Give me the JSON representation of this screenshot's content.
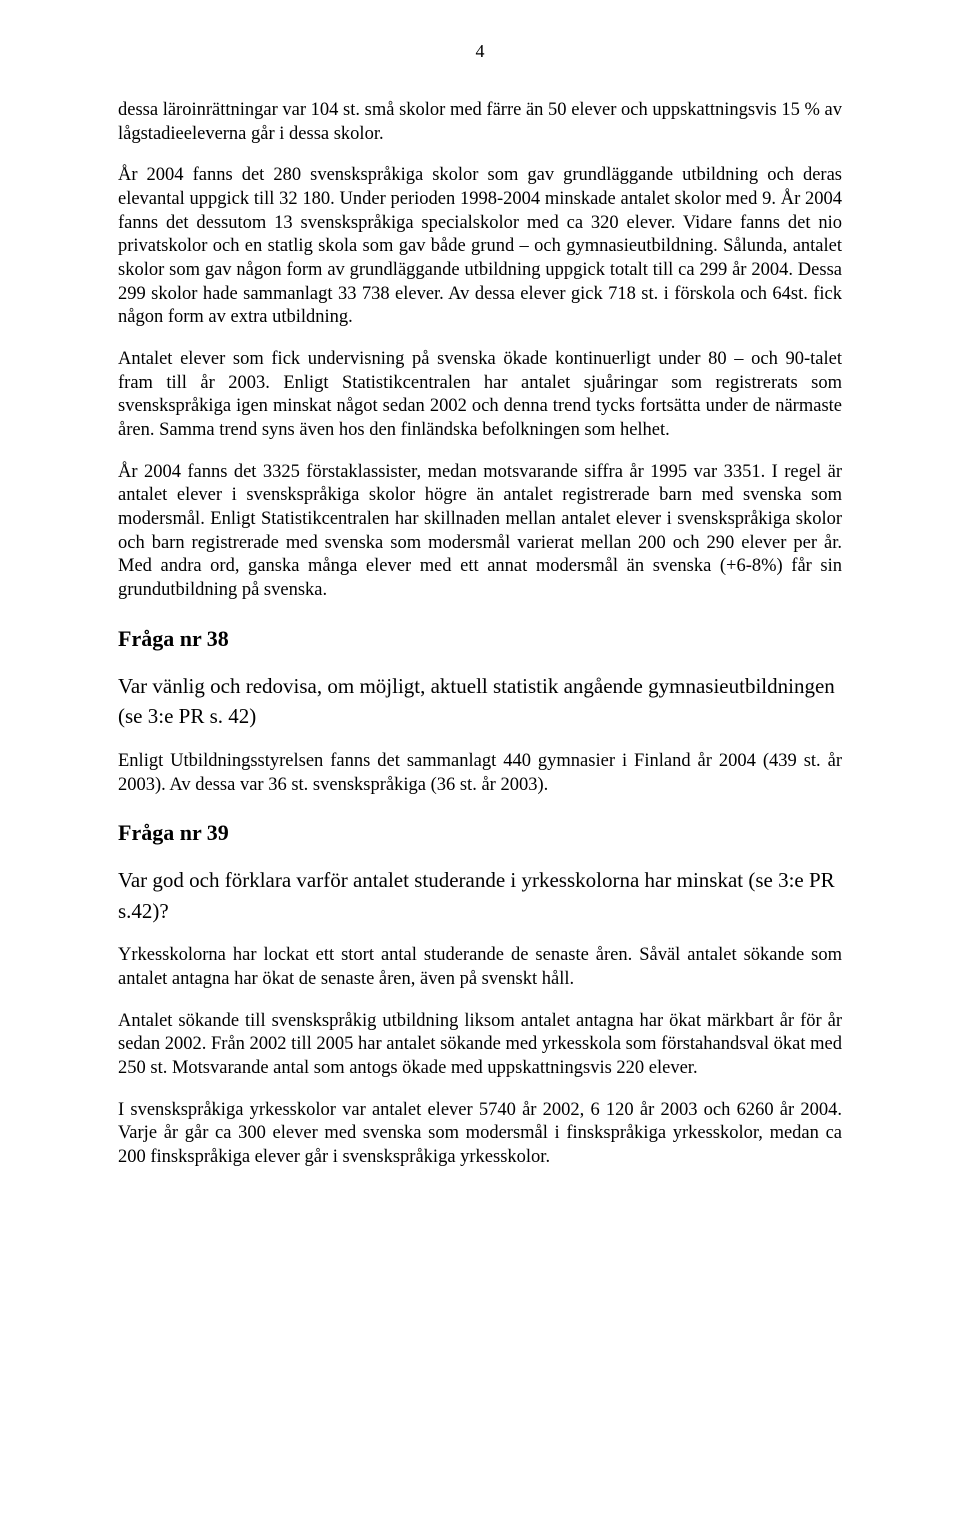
{
  "pageNumber": "4",
  "paragraphs": {
    "p1": "dessa läroinrättningar var 104 st. små skolor med färre än 50 elever och uppskattningsvis 15 % av lågstadieeleverna går i dessa skolor.",
    "p2": "År 2004 fanns det 280 svenskspråkiga skolor som gav grundläggande utbildning och deras elevantal uppgick till 32 180. Under perioden 1998-2004 minskade antalet skolor med 9. År 2004 fanns det dessutom 13 svenskspråkiga specialskolor med ca 320 elever. Vidare fanns det nio privatskolor och en statlig skola som gav både grund – och gymnasieutbildning. Sålunda, antalet skolor som gav någon form av grundläggande utbildning uppgick totalt till ca 299 år 2004. Dessa 299 skolor hade sammanlagt 33 738 elever. Av dessa elever gick 718 st. i förskola och 64st. fick någon form av extra utbildning.",
    "p3": "Antalet elever som fick undervisning på svenska ökade kontinuerligt under 80 – och 90-talet fram till år 2003. Enligt Statistikcentralen har antalet sjuåringar som registrerats som svenskspråkiga igen minskat något sedan 2002 och denna trend tycks fortsätta under de närmaste åren. Samma trend syns även hos den finländska befolkningen som helhet.",
    "p4": "År 2004 fanns det 3325 förstaklassister, medan motsvarande siffra år 1995 var 3351. I regel är antalet elever i svenskspråkiga skolor högre än antalet registrerade barn med svenska som modersmål. Enligt Statistikcentralen har skillnaden mellan antalet elever i svenskspråkiga skolor och barn registrerade med svenska som modersmål varierat mellan 200 och 290 elever per år. Med andra ord, ganska många elever med ett annat modersmål än svenska (+6-8%) får sin grundutbildning på svenska.",
    "p5": "Enligt Utbildningsstyrelsen fanns det sammanlagt 440 gymnasier i Finland år 2004 (439 st. år 2003). Av dessa var 36 st. svenskspråkiga (36 st. år 2003).",
    "p6": "Yrkesskolorna har lockat ett stort antal studerande de senaste åren. Såväl antalet sökande som antalet antagna har ökat de senaste åren, även på svenskt håll.",
    "p7": "Antalet sökande till svenskspråkig utbildning liksom antalet antagna har ökat märkbart år för år sedan 2002. Från 2002 till 2005 har antalet sökande med yrkesskola som förstahandsval ökat med 250 st. Motsvarande antal som antogs ökade med uppskattningsvis 220 elever.",
    "p8": "I svenskspråkiga yrkesskolor var antalet elever 5740 år 2002, 6 120 år 2003 och 6260 år 2004. Varje år går ca 300 elever med svenska som modersmål i finskspråkiga yrkesskolor, medan ca 200 finskspråkiga elever går i svenskspråkiga yrkesskolor."
  },
  "headings": {
    "q38": "Fråga nr 38",
    "q38sub": "Var vänlig och redovisa, om möjligt, aktuell statistik angående gymnasieutbildningen (se 3:e PR s. 42)",
    "q39": "Fråga nr 39",
    "q39sub": "Var god och förklara varför antalet studerande i yrkesskolorna har minskat (se 3:e PR s.42)?"
  },
  "colors": {
    "background": "#ffffff",
    "text": "#000000"
  },
  "typography": {
    "fontFamily": "Times New Roman",
    "bodyFontSize": 18.5,
    "headingFontSize": 22,
    "subheadingFontSize": 21
  }
}
